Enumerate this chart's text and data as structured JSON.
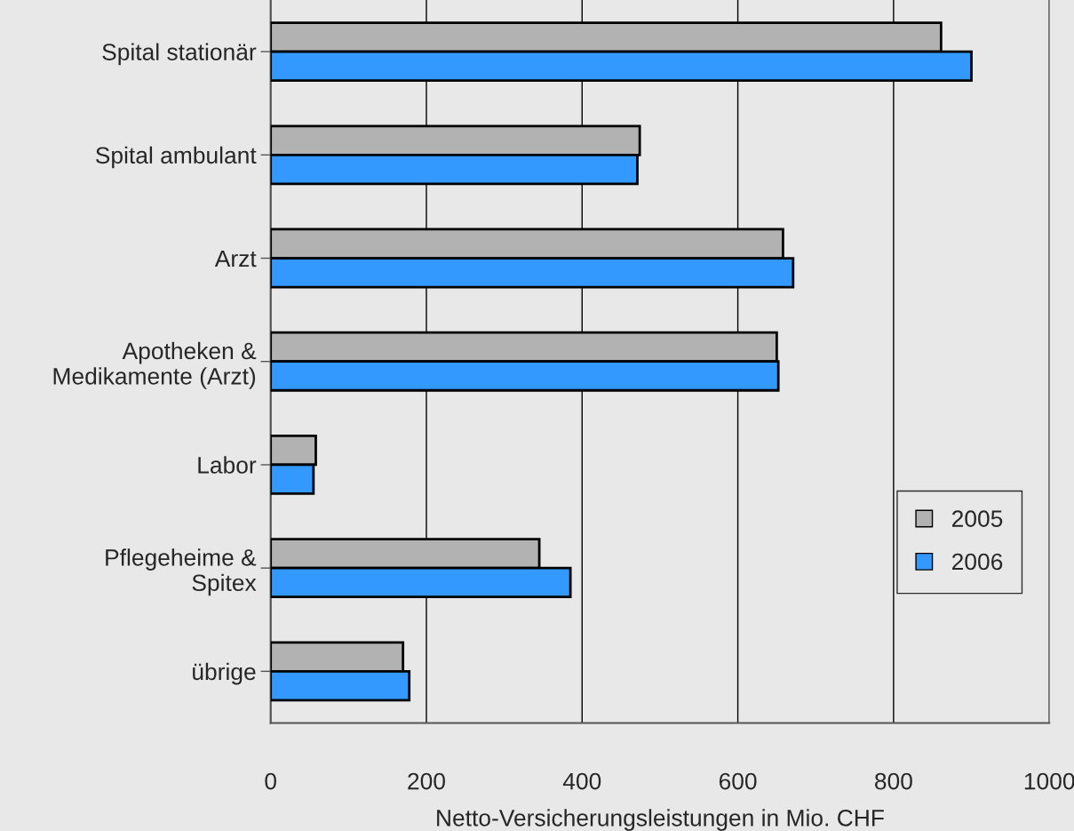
{
  "chart_data": {
    "type": "bar",
    "orientation": "horizontal",
    "categories": [
      "Spital stationär",
      "Spital ambulant",
      "Arzt",
      "Apotheken &\nMedikamente (Arzt)",
      "Labor",
      "Pflegeheime &\nSpitex",
      "übrige"
    ],
    "series": [
      {
        "name": "2005",
        "color": "#b2b2b2",
        "values": [
          861,
          474,
          658,
          650,
          58,
          345,
          170
        ]
      },
      {
        "name": "2006",
        "color": "#3399ff",
        "values": [
          900,
          471,
          671,
          652,
          55,
          385,
          178
        ]
      }
    ],
    "xlabel": "Netto-Versicherungsleistungen in Mio. CHF",
    "xlim": [
      0,
      1000
    ],
    "xticks": [
      0,
      200,
      400,
      600,
      800,
      1000
    ],
    "grid": "x",
    "legend": "right"
  }
}
